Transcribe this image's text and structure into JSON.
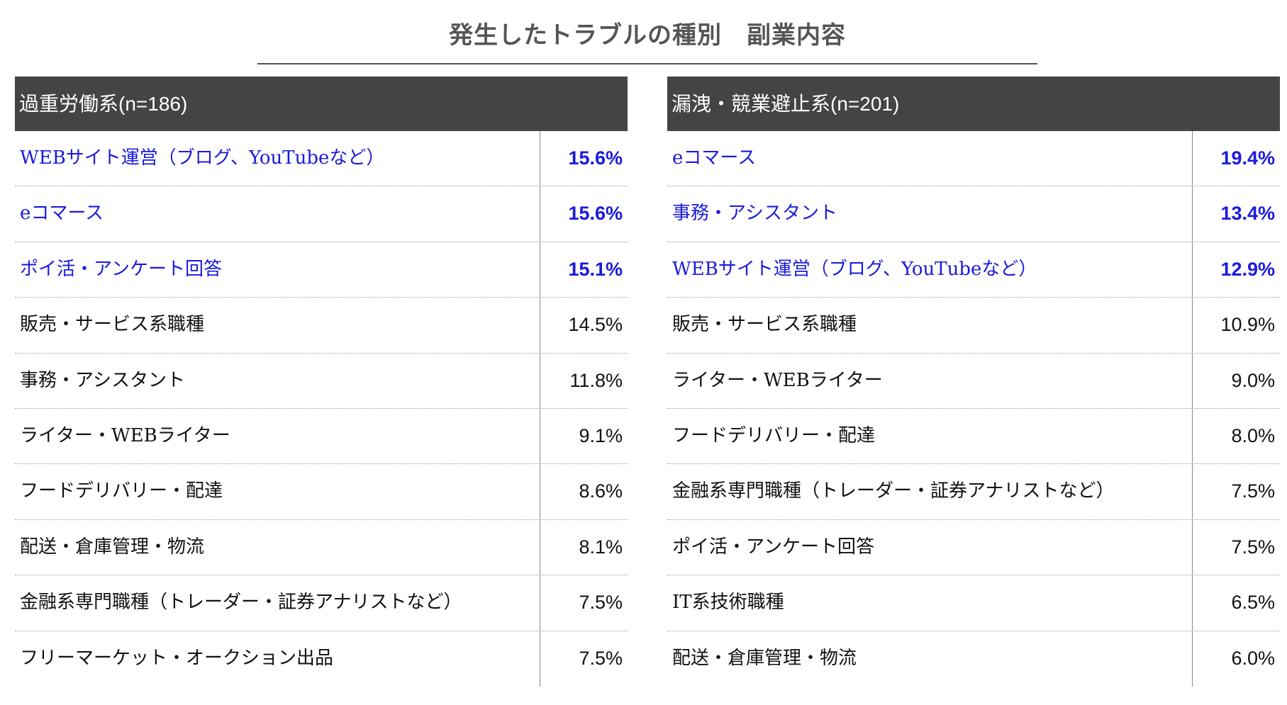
{
  "title": "発生したトラブルの種別　副業内容",
  "colors": {
    "highlight": "#1a1add",
    "header_bg": "#444444"
  },
  "tables": [
    {
      "header": "過重労働系(n=186)",
      "rows": [
        {
          "label": "WEBサイト運営（ブログ、YouTubeなど）",
          "value": "15.6%",
          "highlight": true
        },
        {
          "label": "eコマース",
          "value": "15.6%",
          "highlight": true
        },
        {
          "label": "ポイ活・アンケート回答",
          "value": "15.1%",
          "highlight": true
        },
        {
          "label": "販売・サービス系職種",
          "value": "14.5%",
          "highlight": false
        },
        {
          "label": "事務・アシスタント",
          "value": "11.8%",
          "highlight": false
        },
        {
          "label": "ライター・WEBライター",
          "value": "9.1%",
          "highlight": false
        },
        {
          "label": "フードデリバリー・配達",
          "value": "8.6%",
          "highlight": false
        },
        {
          "label": "配送・倉庫管理・物流",
          "value": "8.1%",
          "highlight": false
        },
        {
          "label": "金融系専門職種（トレーダー・証券アナリストなど）",
          "value": "7.5%",
          "highlight": false
        },
        {
          "label": "フリーマーケット・オークション出品",
          "value": "7.5%",
          "highlight": false
        }
      ]
    },
    {
      "header": "漏洩・競業避止系(n=201)",
      "rows": [
        {
          "label": "eコマース",
          "value": "19.4%",
          "highlight": true
        },
        {
          "label": "事務・アシスタント",
          "value": "13.4%",
          "highlight": true
        },
        {
          "label": "WEBサイト運営（ブログ、YouTubeなど）",
          "value": "12.9%",
          "highlight": true
        },
        {
          "label": "販売・サービス系職種",
          "value": "10.9%",
          "highlight": false
        },
        {
          "label": "ライター・WEBライター",
          "value": "9.0%",
          "highlight": false
        },
        {
          "label": "フードデリバリー・配達",
          "value": "8.0%",
          "highlight": false
        },
        {
          "label": "金融系専門職種（トレーダー・証券アナリストなど）",
          "value": "7.5%",
          "highlight": false
        },
        {
          "label": "ポイ活・アンケート回答",
          "value": "7.5%",
          "highlight": false
        },
        {
          "label": "IT系技術職種",
          "value": "6.5%",
          "highlight": false
        },
        {
          "label": "配送・倉庫管理・物流",
          "value": "6.0%",
          "highlight": false
        }
      ]
    }
  ]
}
